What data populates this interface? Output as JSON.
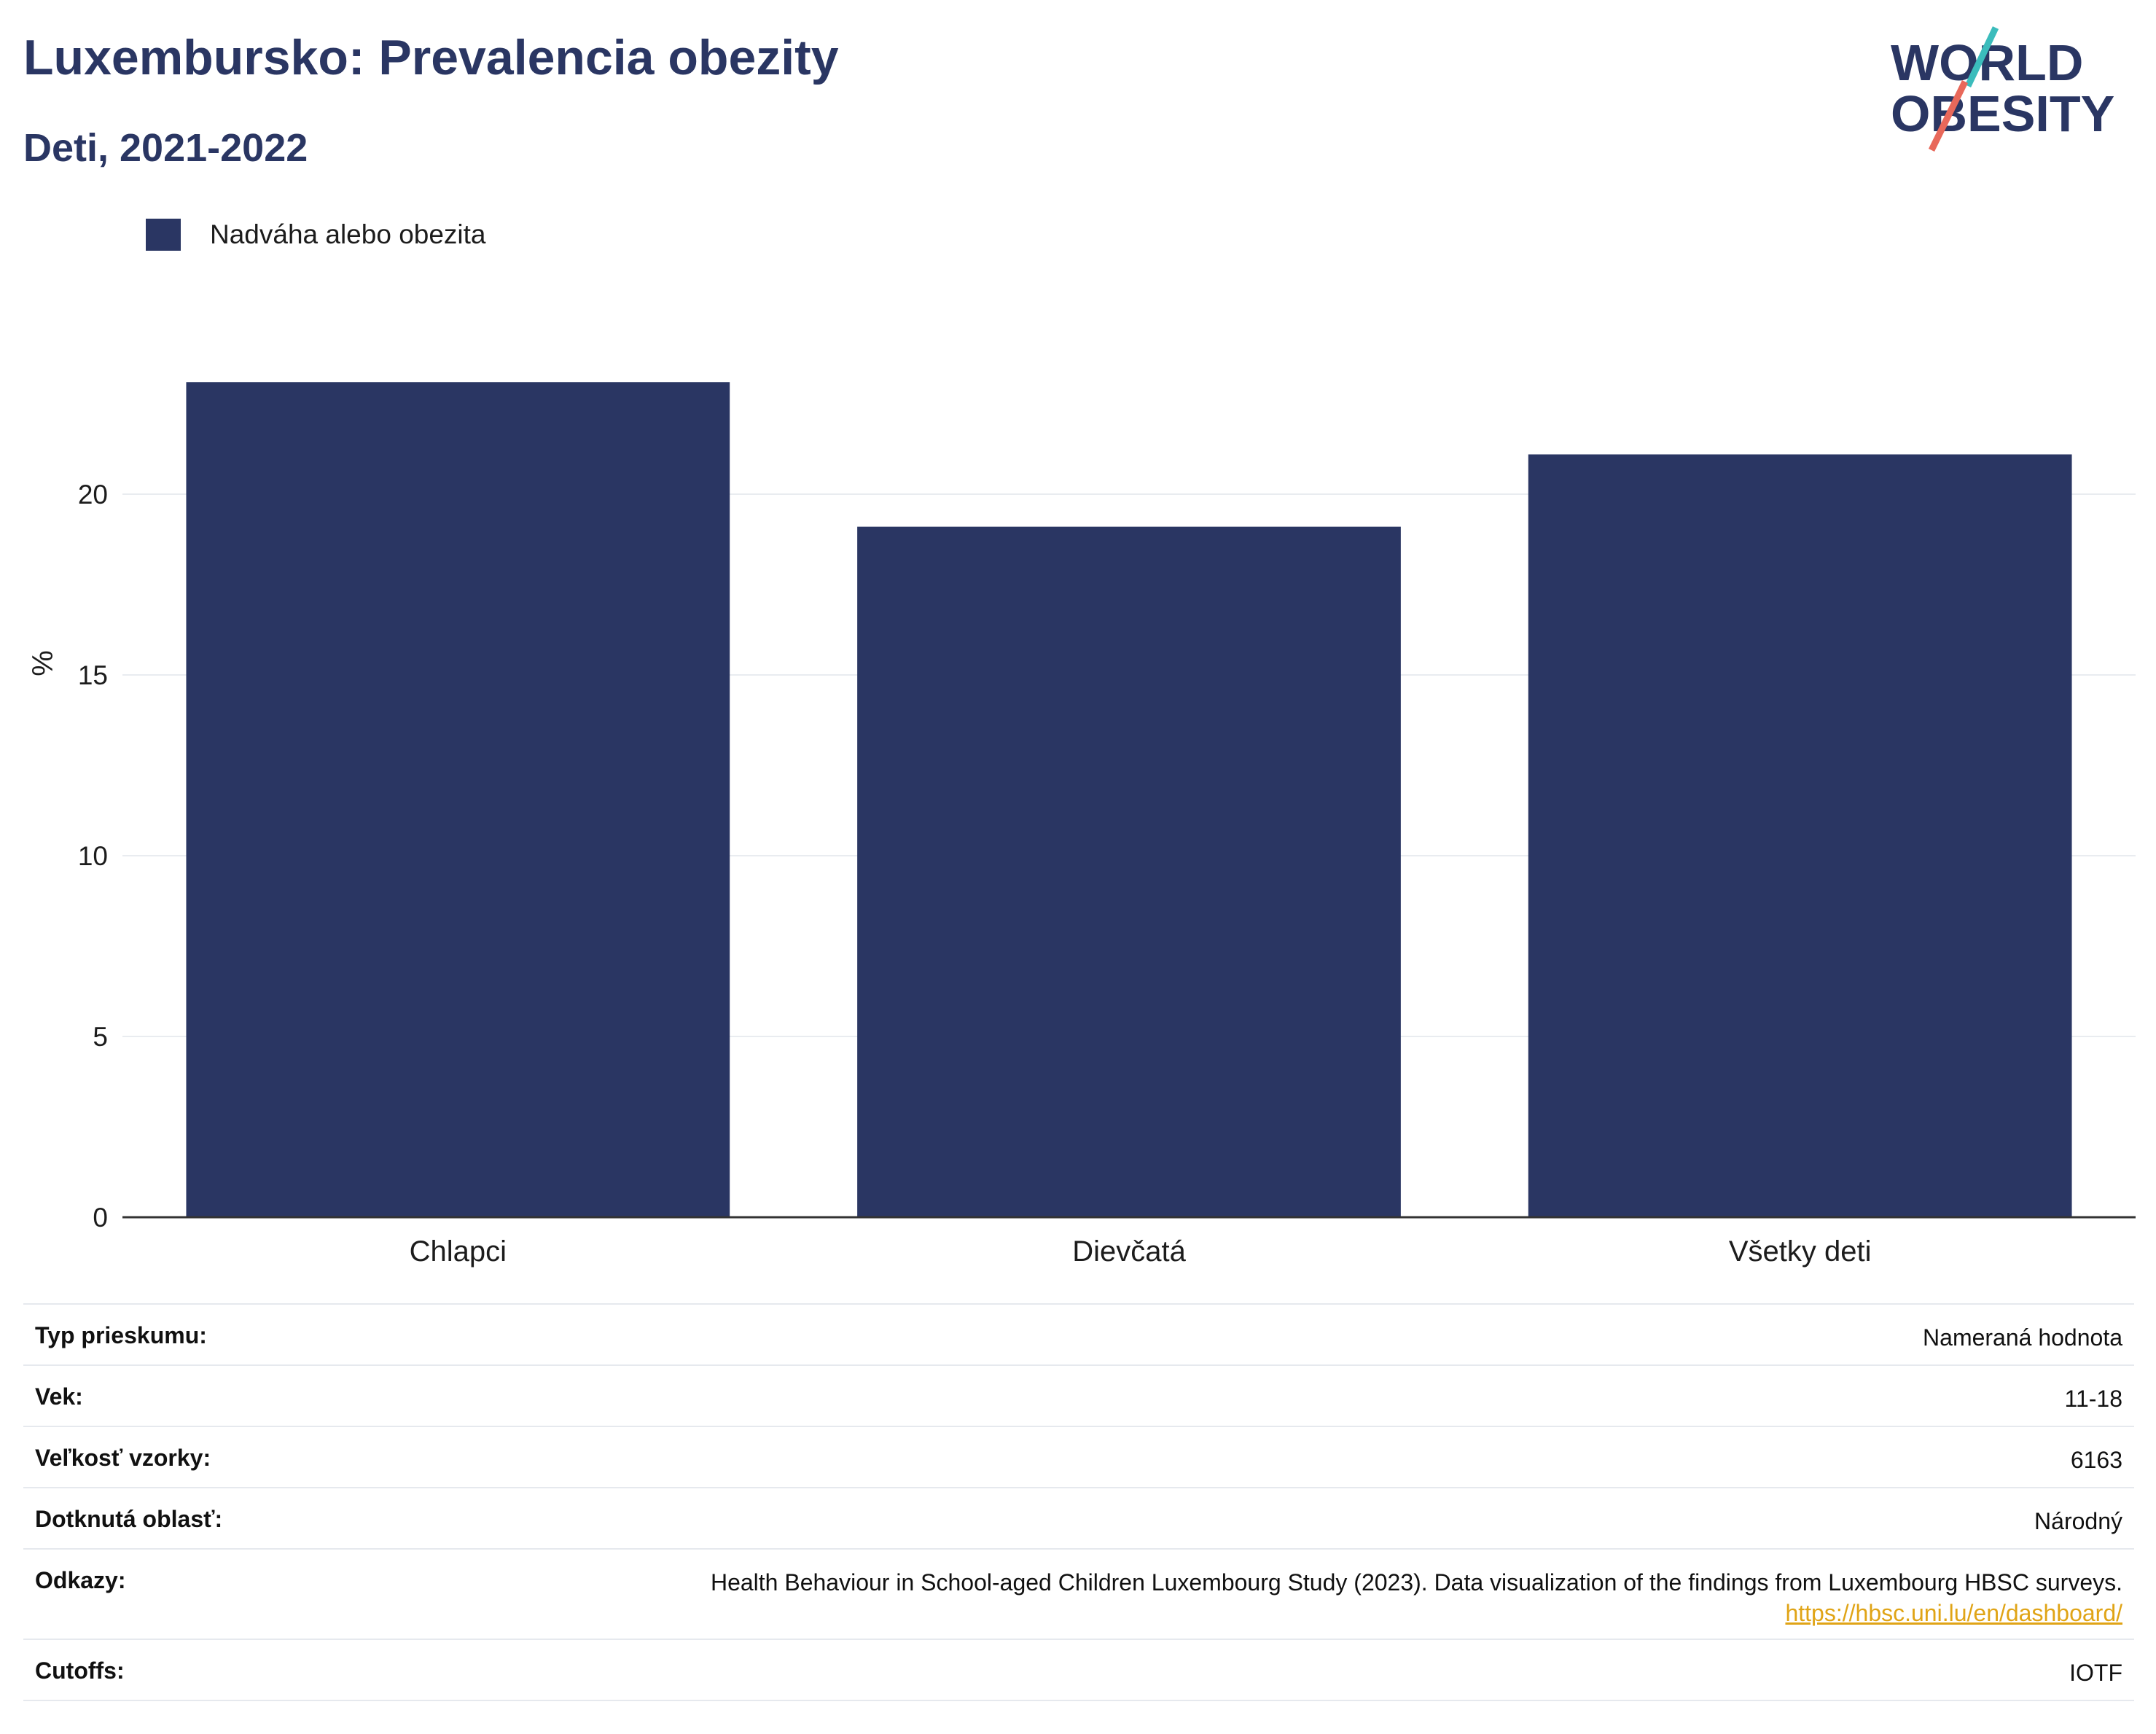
{
  "header": {
    "title": "Luxembursko: Prevalencia obezity",
    "subtitle": "Deti, 2021-2022"
  },
  "logo": {
    "line1": "WORLD",
    "line2": "OBESITY",
    "colors": {
      "text": "#2a3663",
      "slash_teal": "#3bbcbc",
      "slash_coral": "#e8685a"
    }
  },
  "chart_data": {
    "type": "bar",
    "title": "",
    "xlabel": "",
    "ylabel": "%",
    "categories": [
      "Chlapci",
      "Dievčatá",
      "Všetky deti"
    ],
    "series": [
      {
        "name": "Nadváha alebo obezita",
        "values": [
          23.1,
          19.1,
          21.1
        ],
        "color": "#2a3663"
      }
    ],
    "ylim": [
      0,
      25
    ],
    "yticks": [
      0,
      5,
      10,
      15,
      20
    ],
    "grid": true,
    "legend": "top-left"
  },
  "meta": {
    "rows": [
      {
        "key": "Typ prieskumu:",
        "value": "Nameraná hodnota"
      },
      {
        "key": "Vek:",
        "value": "11-18"
      },
      {
        "key": "Veľkosť vzorky:",
        "value": "6163"
      },
      {
        "key": "Dotknutá oblasť:",
        "value": "Národný"
      },
      {
        "key": "Odkazy:",
        "value": "Health Behaviour in School-aged Children Luxembourg Study (2023). Data visualization of the findings from Luxembourg HBSC surveys.",
        "link": "https://hbsc.uni.lu/en/dashboard/"
      },
      {
        "key": "Cutoffs:",
        "value": "IOTF"
      }
    ]
  }
}
